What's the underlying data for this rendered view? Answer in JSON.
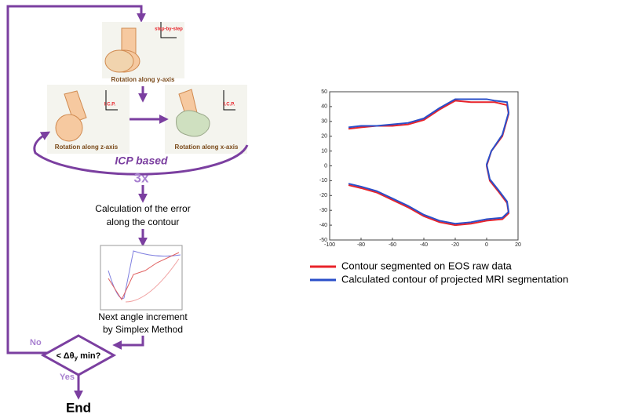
{
  "flowchart": {
    "icon_labels": [
      "step-by-step",
      "I.C.P.",
      "I.C.P."
    ],
    "steps": [
      "Rotation along y-axis",
      "Rotation along z-axis",
      "Rotation along x-axis"
    ],
    "loop": {
      "label": "ICP based",
      "count": "3x"
    },
    "error_step": [
      "Calculation of the error",
      "along the contour"
    ],
    "simplex_step": [
      "Next angle increment",
      "by Simplex Method"
    ],
    "decision": {
      "prefix": "< Δθ",
      "subscript": "y",
      "suffix": " min?"
    },
    "no": "No",
    "yes": "Yes",
    "end": "End"
  },
  "chart_data": {
    "type": "line",
    "x": [
      -88,
      -80,
      -70,
      -60,
      -50,
      -40,
      -30,
      -20,
      -10,
      0,
      5,
      13,
      14,
      10,
      3,
      0,
      2,
      8,
      13,
      14,
      10,
      0,
      -10,
      -20,
      -30,
      -40,
      -50,
      -60,
      -70,
      -80,
      -88
    ],
    "series": [
      {
        "name": "Contour segmented on EOS raw data",
        "color": "#e8232a",
        "values": [
          25,
          26,
          27,
          27,
          28,
          31,
          38,
          44,
          43,
          43,
          43,
          41,
          35,
          20,
          10,
          0,
          -10,
          -18,
          -25,
          -32,
          -36,
          -37,
          -39,
          -40,
          -38,
          -34,
          -28,
          -23,
          -18,
          -15,
          -13
        ]
      },
      {
        "name": "Calculated contour of projected MRI segmentation",
        "color": "#2a4fc9",
        "values": [
          26,
          27,
          27,
          28,
          29,
          32,
          39,
          45,
          45,
          45,
          44,
          43,
          36,
          21,
          10,
          1,
          -9,
          -17,
          -24,
          -31,
          -35,
          -36,
          -38,
          -39,
          -37,
          -33,
          -27,
          -22,
          -17,
          -14,
          -12
        ]
      }
    ],
    "xlim": [
      -100,
      20
    ],
    "xticks": [
      -100,
      -80,
      -60,
      -40,
      -20,
      0,
      20
    ],
    "ylim": [
      -50,
      50
    ],
    "yticks": [
      -50,
      -40,
      -30,
      -20,
      -10,
      0,
      10,
      20,
      30,
      40,
      50
    ]
  }
}
